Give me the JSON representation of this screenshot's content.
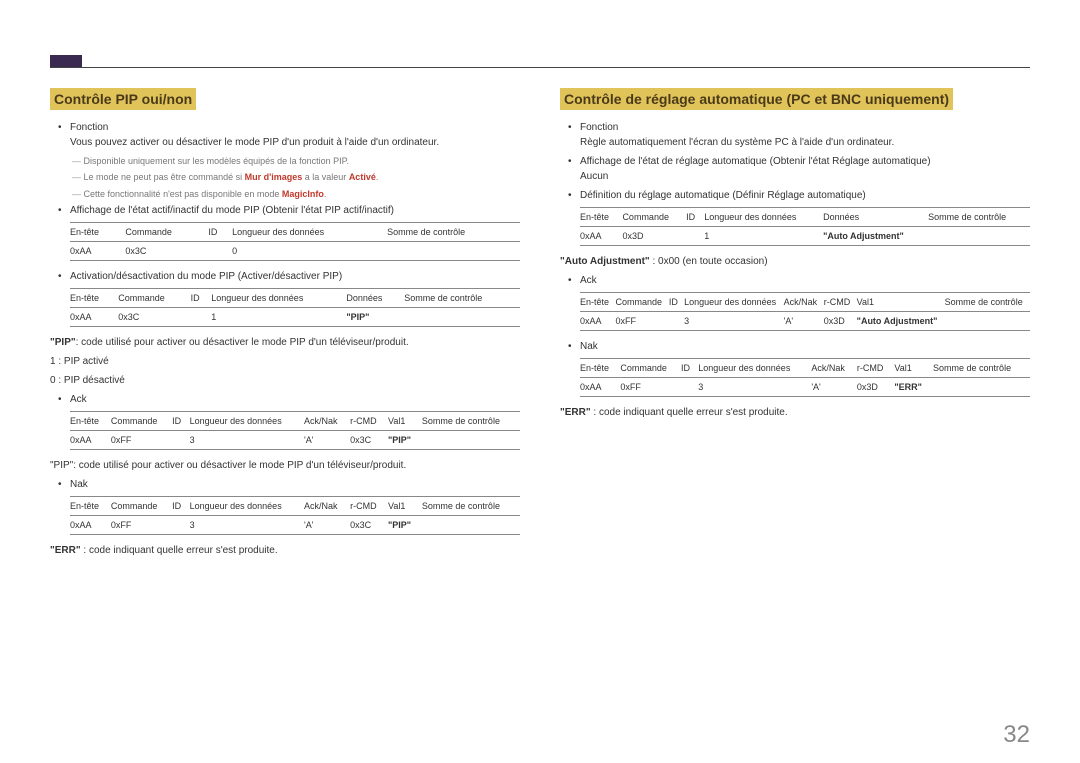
{
  "page_number": "32",
  "left": {
    "heading": "Contrôle PIP oui/non",
    "fn_label": "Fonction",
    "fn_text": "Vous pouvez activer ou désactiver le mode PIP d'un produit à l'aide d'un ordinateur.",
    "note1_a": "Disponible uniquement sur les modèles équipés de la fonction PIP.",
    "note2_a": "Le mode ne peut pas être commandé si ",
    "note2_b": "Mur d'images",
    "note2_c": " a la valeur ",
    "note2_d": "Activé",
    "note2_e": ".",
    "note3_a": "Cette fonctionnalité n'est pas disponible en mode ",
    "note3_b": "MagicInfo",
    "note3_c": ".",
    "b2": "Affichage de l'état actif/inactif du mode PIP (Obtenir l'état PIP actif/inactif)",
    "t1": {
      "h": [
        "En-tête",
        "Commande",
        "ID",
        "Longueur des données",
        "Somme de contrôle"
      ],
      "r": [
        "0xAA",
        "0x3C",
        "",
        "0",
        ""
      ]
    },
    "b3": "Activation/désactivation du mode PIP (Activer/désactiver PIP)",
    "t2": {
      "h": [
        "En-tête",
        "Commande",
        "ID",
        "Longueur des données",
        "Données",
        "Somme de contrôle"
      ],
      "r": [
        "0xAA",
        "0x3C",
        "",
        "1",
        "\"PIP\"",
        ""
      ]
    },
    "pip_def_a": "\"PIP\"",
    "pip_def_b": ": code utilisé pour activer ou désactiver le mode PIP d'un téléviseur/produit.",
    "pip_1": "1 : PIP activé",
    "pip_0": "0 : PIP désactivé",
    "ack": "Ack",
    "t3": {
      "h": [
        "En-tête",
        "Commande",
        "ID",
        "Longueur des données",
        "Ack/Nak",
        "r-CMD",
        "Val1",
        "Somme de contrôle"
      ],
      "r": [
        "0xAA",
        "0xFF",
        "",
        "3",
        "'A'",
        "0x3C",
        "\"PIP\"",
        ""
      ]
    },
    "pip_def2": "\"PIP\": code utilisé pour activer ou désactiver le mode PIP d'un téléviseur/produit.",
    "nak": "Nak",
    "t4": {
      "h": [
        "En-tête",
        "Commande",
        "ID",
        "Longueur des données",
        "Ack/Nak",
        "r-CMD",
        "Val1",
        "Somme de contrôle"
      ],
      "r": [
        "0xAA",
        "0xFF",
        "",
        "3",
        "'A'",
        "0x3C",
        "\"PIP\"",
        ""
      ]
    },
    "err_a": "\"ERR\"",
    "err_b": " : code indiquant quelle erreur s'est produite."
  },
  "right": {
    "heading": "Contrôle de réglage automatique (PC et BNC uniquement)",
    "fn_label": "Fonction",
    "fn_text": "Règle automatiquement l'écran du système PC à l'aide d'un ordinateur.",
    "b2a": "Affichage de l'état de réglage automatique (Obtenir l'état Réglage automatique)",
    "b2b": "Aucun",
    "b3": "Définition du réglage automatique (Définir Réglage automatique)",
    "t1": {
      "h": [
        "En-tête",
        "Commande",
        "ID",
        "Longueur des données",
        "Données",
        "Somme de contrôle"
      ],
      "r": [
        "0xAA",
        "0x3D",
        "",
        "1",
        "\"Auto Adjustment\"",
        ""
      ]
    },
    "auto_def_a": "\"Auto Adjustment\"",
    "auto_def_b": " : 0x00 (en toute occasion)",
    "ack": "Ack",
    "t2": {
      "h": [
        "En-tête",
        "Commande",
        "ID",
        "Longueur des données",
        "Ack/Nak",
        "r-CMD",
        "Val1",
        "Somme de contrôle"
      ],
      "r": [
        "0xAA",
        "0xFF",
        "",
        "3",
        "'A'",
        "0x3D",
        "\"Auto Adjustment\"",
        ""
      ]
    },
    "nak": "Nak",
    "t3": {
      "h": [
        "En-tête",
        "Commande",
        "ID",
        "Longueur des données",
        "Ack/Nak",
        "r-CMD",
        "Val1",
        "Somme de contrôle"
      ],
      "r": [
        "0xAA",
        "0xFF",
        "",
        "3",
        "'A'",
        "0x3D",
        "\"ERR\"",
        ""
      ]
    },
    "err_a": "\"ERR\"",
    "err_b": " : code indiquant quelle erreur s'est produite."
  }
}
